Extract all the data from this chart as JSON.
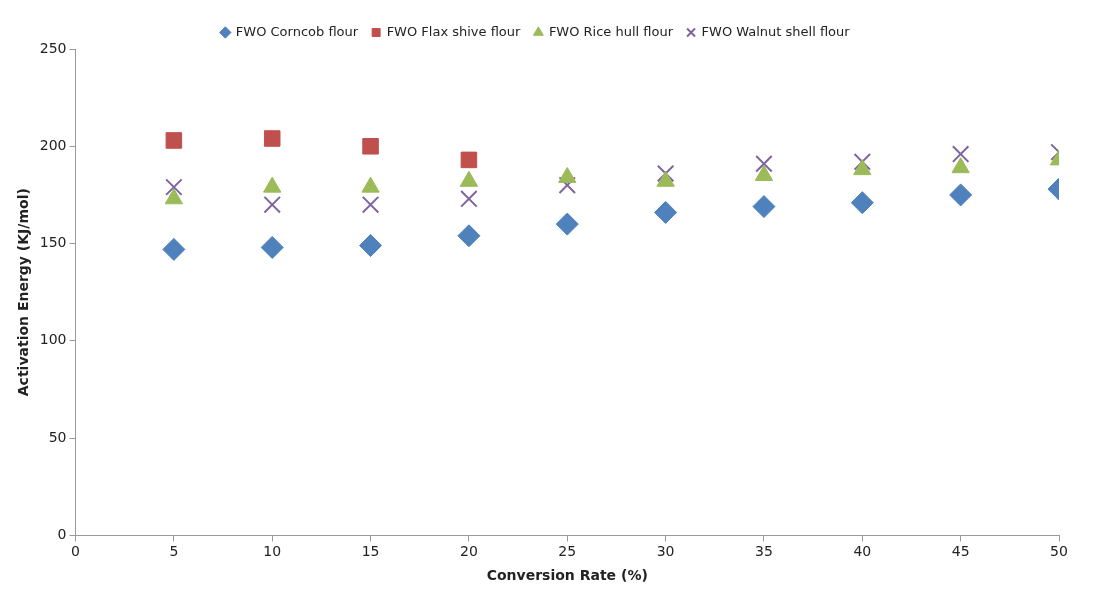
{
  "chart_data": {
    "type": "scatter",
    "xlabel": "Conversion Rate (%)",
    "ylabel": "Activation Energy (KJ/mol)",
    "x": [
      5,
      10,
      15,
      20,
      25,
      30,
      35,
      40,
      45,
      50
    ],
    "xlim": [
      0,
      50
    ],
    "xticks": [
      0,
      5,
      10,
      15,
      20,
      25,
      30,
      35,
      40,
      45,
      50
    ],
    "ylim": [
      0,
      250
    ],
    "yticks": [
      0,
      50,
      100,
      150,
      200,
      250
    ],
    "grid": false,
    "legend": "top",
    "series": [
      {
        "name": "FWO Corncob flour",
        "color": "#4f81bd",
        "marker": "diamond",
        "values": [
          147,
          148,
          149,
          154,
          160,
          166,
          169,
          171,
          175,
          178
        ]
      },
      {
        "name": "FWO Flax shive flour",
        "color": "#c0504d",
        "marker": "square",
        "values": [
          203,
          204,
          200,
          193,
          null,
          null,
          null,
          null,
          null,
          null
        ]
      },
      {
        "name": "FWO Rice hull flour",
        "color": "#9bbb59",
        "marker": "triangle",
        "values": [
          173,
          179,
          179,
          182,
          184,
          182,
          185,
          188,
          189,
          193
        ]
      },
      {
        "name": "FWO Walnut shell flour",
        "color": "#8064a2",
        "marker": "cross",
        "values": [
          179,
          170,
          170,
          173,
          180,
          186,
          191,
          192,
          196,
          197
        ]
      }
    ]
  }
}
